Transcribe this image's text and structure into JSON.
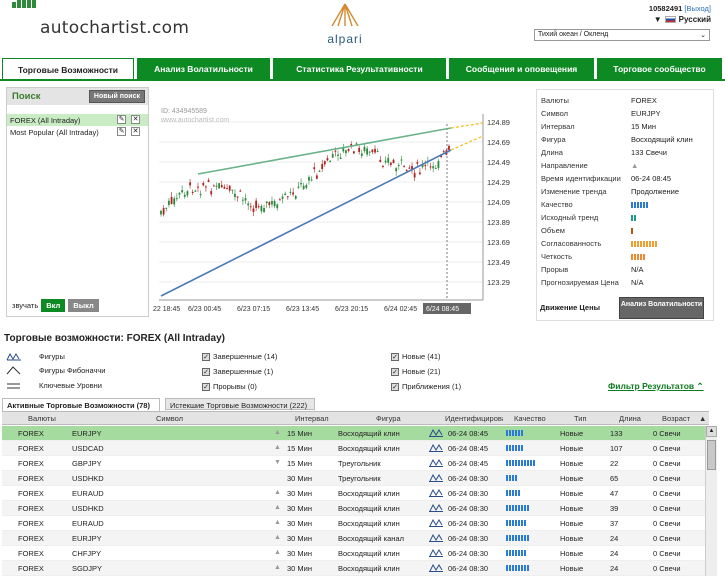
{
  "header": {
    "logo_text": "autochartist.com",
    "broker_name": "alpari",
    "account_id": "10582491",
    "logout_label": "[Выход]",
    "language": "Русский",
    "timezone": "Тихий океан / Окленд"
  },
  "tabs": [
    {
      "label": "Торговые Возможности",
      "active": true
    },
    {
      "label": "Анализ Волатильности",
      "active": false
    },
    {
      "label": "Статистика Результативности",
      "active": false
    },
    {
      "label": "Сообщения и оповещения",
      "active": false
    },
    {
      "label": "Торговое сообщество",
      "active": false
    }
  ],
  "search": {
    "title": "Поиск",
    "new_search_label": "Новый поиск",
    "items": [
      {
        "label": "FOREX (All Intraday)",
        "selected": true
      },
      {
        "label": "Most Popular (All Intraday)",
        "selected": false
      }
    ],
    "sound_label": "звучать",
    "on_label": "Вкл",
    "off_label": "Выкл"
  },
  "chart": {
    "id_label": "ID: 434945589",
    "watermark": "www.autochartist.com",
    "price_ticks": [
      "124.89",
      "124.69",
      "124.49",
      "124.29",
      "124.09",
      "123.89",
      "123.69",
      "123.49",
      "123.29"
    ],
    "time_ticks": [
      "22 18:45",
      "6/23 00:45",
      "6/23 07:15",
      "6/23 13:45",
      "6/23 20:15",
      "6/24 02:45",
      "6/24 08:45"
    ]
  },
  "details": {
    "rows": [
      {
        "label": "Валюты",
        "value": "FOREX"
      },
      {
        "label": "Символ",
        "value": "EURJPY"
      },
      {
        "label": "Интервал",
        "value": "15 Мин"
      },
      {
        "label": "Фигура",
        "value": "Восходящий клин"
      },
      {
        "label": "Длина",
        "value": "133 Свечи"
      },
      {
        "label": "Направление",
        "value": "▲"
      },
      {
        "label": "Время идентификации",
        "value": "06-24 08:45"
      },
      {
        "label": "Изменение тренда",
        "value": "Продолжение"
      },
      {
        "label": "Качество",
        "value": ""
      },
      {
        "label": "Исходный тренд",
        "value": ""
      },
      {
        "label": "Объем",
        "value": ""
      },
      {
        "label": "Согласованность",
        "value": ""
      },
      {
        "label": "Четкость",
        "value": ""
      },
      {
        "label": "Прорыв",
        "value": "N/A"
      },
      {
        "label": "Прогнозируемая Цена",
        "value": "N/A"
      }
    ],
    "bars": {
      "quality": {
        "count": 6,
        "color": "#2a7bd8"
      },
      "initial_trend": {
        "count": 2,
        "color": "#1a9a8a"
      },
      "volume": {
        "count": 1,
        "color": "#b05a10"
      },
      "uniformity": {
        "count": 9,
        "color": "#f0a030"
      },
      "clarity": {
        "count": 5,
        "color": "#f08a30"
      }
    },
    "price_move_label": "Движение Цены",
    "volatility_button": "Анализ Волатильности"
  },
  "opportunities": {
    "title": "Торговые возможности: FOREX (All Intraday)",
    "legend": [
      {
        "label": "Фигуры",
        "icon": "chart-pattern-icon"
      },
      {
        "label": "Фигуры Фибоначчи",
        "icon": "fibonacci-icon"
      },
      {
        "label": "Ключевые Уровни",
        "icon": "key-levels-icon"
      }
    ],
    "checks_mid": [
      {
        "label": "Завершенные (14)",
        "checked": true
      },
      {
        "label": "Завершенные (1)",
        "checked": true
      },
      {
        "label": "Прорывы (0)",
        "checked": true
      }
    ],
    "checks_right": [
      {
        "label": "Новые (41)",
        "checked": true
      },
      {
        "label": "Новые (21)",
        "checked": true
      },
      {
        "label": "Приближения (1)",
        "checked": true
      }
    ],
    "filter_label": "Фильтр Результатов",
    "tab_active": "Активные Торговые Возможности (78)",
    "tab_expired": "Истекшие Торговые Возможности (222)",
    "columns": [
      "Валюты",
      "Символ",
      "Интервал",
      "Фигура",
      "Идентифицирован",
      "Качество",
      "Тип",
      "Длина",
      "Возраст"
    ],
    "rows": [
      {
        "market": "FOREX",
        "symbol": "EURJPY",
        "dir": "▲",
        "interval": "15 Мин",
        "pattern": "Восходящий клин",
        "time": "06-24 08:45",
        "quality": 6,
        "type": "Новые",
        "length": "133",
        "age": "0 Свечи",
        "sel": true
      },
      {
        "market": "FOREX",
        "symbol": "USDCAD",
        "dir": "▲",
        "interval": "15 Мин",
        "pattern": "Восходящий клин",
        "time": "06-24 08:45",
        "quality": 6,
        "type": "Новые",
        "length": "107",
        "age": "0 Свечи"
      },
      {
        "market": "FOREX",
        "symbol": "GBPJPY",
        "dir": "▼",
        "interval": "15 Мин",
        "pattern": "Треугольник",
        "time": "06-24 08:45",
        "quality": 10,
        "type": "Новые",
        "length": "22",
        "age": "0 Свечи"
      },
      {
        "market": "FOREX",
        "symbol": "USDHKD",
        "dir": "",
        "interval": "30 Мин",
        "pattern": "Треугольник",
        "time": "06-24 08:30",
        "quality": 4,
        "type": "Новые",
        "length": "65",
        "age": "0 Свечи"
      },
      {
        "market": "FOREX",
        "symbol": "EURAUD",
        "dir": "▲",
        "interval": "30 Мин",
        "pattern": "Восходящий клин",
        "time": "06-24 08:30",
        "quality": 5,
        "type": "Новые",
        "length": "47",
        "age": "0 Свечи"
      },
      {
        "market": "FOREX",
        "symbol": "USDHKD",
        "dir": "▲",
        "interval": "30 Мин",
        "pattern": "Восходящий клин",
        "time": "06-24 08:30",
        "quality": 8,
        "type": "Новые",
        "length": "39",
        "age": "0 Свечи"
      },
      {
        "market": "FOREX",
        "symbol": "EURAUD",
        "dir": "▲",
        "interval": "30 Мин",
        "pattern": "Восходящий клин",
        "time": "06-24 08:30",
        "quality": 7,
        "type": "Новые",
        "length": "37",
        "age": "0 Свечи"
      },
      {
        "market": "FOREX",
        "symbol": "EURJPY",
        "dir": "▲",
        "interval": "30 Мин",
        "pattern": "Восходящий канал",
        "time": "06-24 08:30",
        "quality": 8,
        "type": "Новые",
        "length": "24",
        "age": "0 Свечи"
      },
      {
        "market": "FOREX",
        "symbol": "CHFJPY",
        "dir": "▲",
        "interval": "30 Мин",
        "pattern": "Восходящий клин",
        "time": "06-24 08:30",
        "quality": 7,
        "type": "Новые",
        "length": "24",
        "age": "0 Свечи"
      },
      {
        "market": "FOREX",
        "symbol": "SGDJPY",
        "dir": "▲",
        "interval": "30 Мин",
        "pattern": "Восходящий клин",
        "time": "06-24 08:30",
        "quality": 8,
        "type": "Новые",
        "length": "24",
        "age": "0 Свечи"
      }
    ]
  }
}
